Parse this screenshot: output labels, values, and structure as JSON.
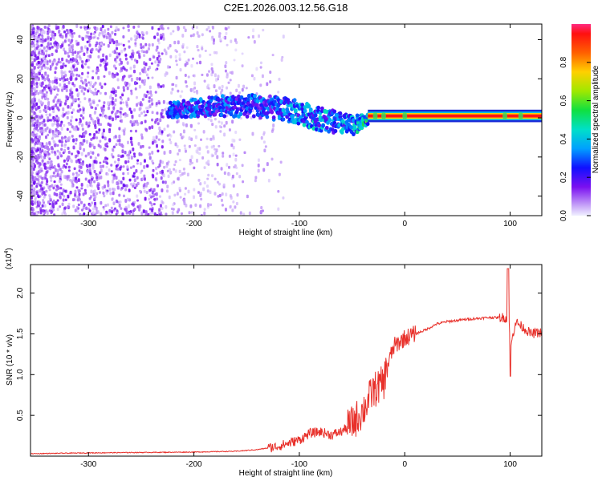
{
  "title": "C2E1.2026.003.12.56.G18",
  "colors": {
    "snr_line": "#e8302a",
    "spectrum_low": "#7a10f0",
    "spectrum_mid": "#00d8e0",
    "spectrum_high": "#ff1010"
  },
  "chart_data": [
    {
      "type": "heatmap",
      "name": "spectrogram",
      "xlabel": "Height of straight line (km)",
      "ylabel": "Frequency (Hz)",
      "xlim": [
        -355,
        130
      ],
      "ylim": [
        -50,
        48
      ],
      "xticks": [
        -300,
        -200,
        -100,
        0,
        100
      ],
      "xtick_labels": [
        "-300",
        "-200",
        "-100",
        "0",
        "100"
      ],
      "yticks": [
        -40,
        -20,
        0,
        20,
        40
      ],
      "ytick_labels": [
        "-40",
        "-20",
        "0",
        "20",
        "40"
      ],
      "colorbar": {
        "label": "Normalized spectral amplitude",
        "range": [
          0,
          1
        ],
        "ticks": [
          0.0,
          0.2,
          0.4,
          0.6,
          0.8
        ],
        "tick_labels": [
          "0.0",
          "0.2",
          "0.4",
          "0.6",
          "0.8"
        ]
      },
      "trace": {
        "description_points_x": [
          -220,
          -180,
          -140,
          -110,
          -90,
          -70,
          -50,
          -30,
          -10,
          0,
          130
        ],
        "center_frequency_hz": [
          4,
          6,
          6,
          4,
          1,
          -2,
          -4,
          0,
          1,
          1,
          1
        ],
        "frequency_spread_hz": [
          4,
          5,
          6,
          6,
          6,
          6,
          5,
          2,
          1,
          1,
          1
        ],
        "amplitude": [
          0.3,
          0.32,
          0.3,
          0.35,
          0.4,
          0.38,
          0.4,
          0.6,
          0.9,
          0.95,
          0.95
        ]
      }
    },
    {
      "type": "line",
      "name": "snr",
      "xlabel": "Height of straight line (km)",
      "ylabel": "SNR (10 * v/v)",
      "scale_label": "(x10",
      "scale_exp": "4",
      "xlim": [
        -355,
        130
      ],
      "ylim": [
        0,
        2.35
      ],
      "xticks": [
        -300,
        -200,
        -100,
        0,
        100
      ],
      "xtick_labels": [
        "-300",
        "-200",
        "-100",
        "0",
        "100"
      ],
      "yticks": [
        0.5,
        1.0,
        1.5,
        2.0
      ],
      "ytick_labels": [
        "0.5",
        "1.0",
        "1.5",
        "2.0"
      ],
      "series": [
        {
          "name": "SNR",
          "x": [
            -355,
            -300,
            -200,
            -160,
            -140,
            -120,
            -100,
            -90,
            -80,
            -70,
            -60,
            -50,
            -40,
            -30,
            -20,
            -17,
            -10,
            0,
            10,
            20,
            30,
            40,
            60,
            80,
            95,
            99,
            100,
            105,
            110,
            115,
            120,
            130
          ],
          "y": [
            0.03,
            0.04,
            0.05,
            0.06,
            0.08,
            0.12,
            0.2,
            0.28,
            0.3,
            0.26,
            0.3,
            0.4,
            0.55,
            0.8,
            0.9,
            1.1,
            1.35,
            1.45,
            1.5,
            1.55,
            1.62,
            1.65,
            1.68,
            1.7,
            1.7,
            1.66,
            1.3,
            1.65,
            1.6,
            1.55,
            1.5,
            1.52
          ]
        }
      ]
    }
  ]
}
